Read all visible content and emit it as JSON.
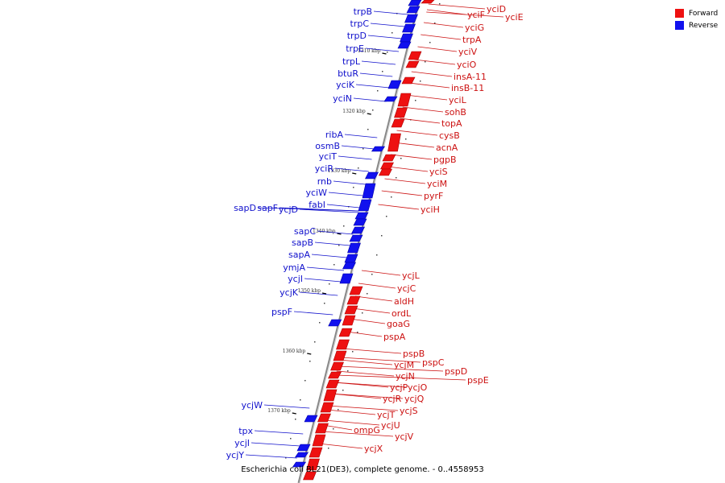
{
  "caption": "Escherichia coli BL21(DE3), complete genome. - 0..4558953",
  "legend": [
    {
      "label": "Forward",
      "color": "#ee1111"
    },
    {
      "label": "Reverse",
      "color": "#1111ee"
    }
  ],
  "ticks": [
    "1310 kbp",
    "1320 kbp",
    "1330 kbp",
    "1340 kbp",
    "1350 kbp",
    "1360 kbp",
    "1370 kbp"
  ],
  "reverse_genes": [
    "trpB",
    "trpC",
    "trpD",
    "trpE",
    "trpL",
    "btuR",
    "yciK",
    "yciN",
    "ribA",
    "osmB",
    "yciT",
    "yciR",
    "rnb",
    "yciW",
    "fabI",
    "sapD",
    "sapF",
    "ycjD",
    "sapC",
    "sapB",
    "sapA",
    "ymjA",
    "ycjI",
    "ycjK",
    "pspF",
    "ycjW",
    "tpx",
    "ycjI",
    "ycjY"
  ],
  "forward_genes": [
    "yciD",
    "yciF",
    "yciE",
    "yciG",
    "trpA",
    "yciV",
    "yciO",
    "insA-11",
    "insB-11",
    "yciL",
    "sohB",
    "topA",
    "cysB",
    "acnA",
    "pgpB",
    "yciS",
    "yciM",
    "pyrF",
    "yciH",
    "ycjL",
    "ycjC",
    "aldH",
    "ordL",
    "goaG",
    "pspA",
    "pspB",
    "pspC",
    "pspD",
    "pspE",
    "ycjM",
    "ycjN",
    "ycjP",
    "ycjO",
    "ycjR",
    "ycjQ",
    "ycjS",
    "ycjT",
    "ycjU",
    "ompG",
    "ycjV",
    "ycjX"
  ]
}
